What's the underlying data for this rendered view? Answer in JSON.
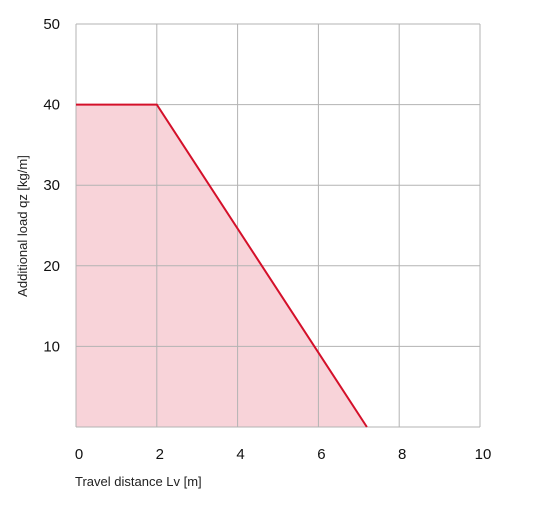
{
  "chart_data": {
    "type": "area",
    "title": "",
    "xlabel": "Travel distance Lv [m]",
    "ylabel": "Additional load qz [kg/m]",
    "xlim": [
      0,
      10
    ],
    "ylim": [
      0,
      50
    ],
    "x_ticks": [
      "0",
      "2",
      "4",
      "6",
      "8",
      "10"
    ],
    "y_ticks": [
      "10",
      "20",
      "30",
      "40",
      "50"
    ],
    "grid": true,
    "legend": "none",
    "series": [
      {
        "x": [
          0,
          2,
          7.2
        ],
        "y": [
          40,
          40,
          0
        ],
        "line_color": "#d4102a",
        "fill_color": "#f8d3d9"
      }
    ]
  }
}
